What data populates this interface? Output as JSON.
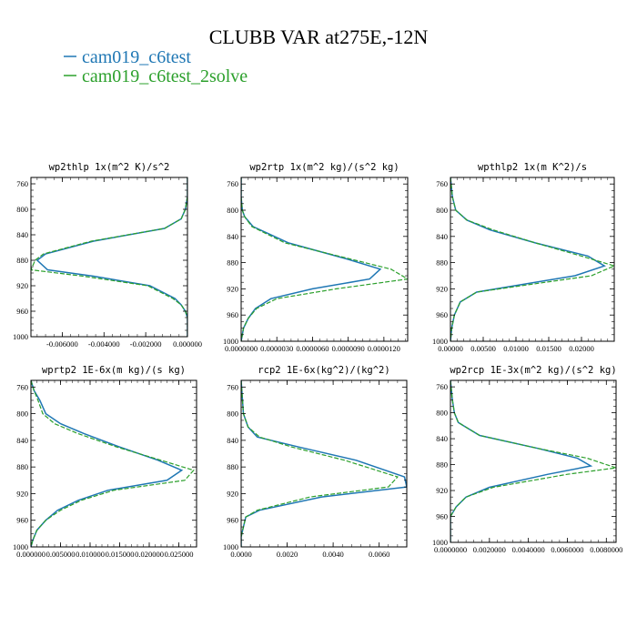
{
  "title": "CLUBB VAR at275E,-12N",
  "legend": [
    {
      "label": "cam019_c6test",
      "color": "#1f77b4"
    },
    {
      "label": "cam019_c6test_2solve",
      "color": "#2ca02c"
    }
  ],
  "chart_data": [
    {
      "type": "line",
      "title": "wp2thlp  1x(m^2 K)/s^2",
      "xlim": [
        -0.0075,
        0.0
      ],
      "ylim": [
        1000,
        750
      ],
      "x_ticks": [
        -0.006,
        -0.004,
        -0.002,
        0.0
      ],
      "x_tick_labels": [
        "-0.006000",
        "-0.004000",
        "-0.002000",
        "0.000000"
      ],
      "y_ticks": [
        760,
        800,
        840,
        880,
        920,
        960,
        1000
      ],
      "series": [
        {
          "name": "cam019_c6test",
          "y": [
            750,
            760,
            780,
            800,
            815,
            830,
            850,
            870,
            880,
            895,
            905,
            920,
            940,
            950,
            960,
            970,
            980,
            1000
          ],
          "x": [
            0.0,
            0.0,
            0.0,
            -0.0001,
            -0.0003,
            -0.0011,
            -0.0045,
            -0.0068,
            -0.0072,
            -0.0067,
            -0.0045,
            -0.0018,
            -0.0006,
            -0.0003,
            -0.0001,
            0.0,
            0.0,
            0.0
          ]
        },
        {
          "name": "cam019_c6test_2solve",
          "y": [
            750,
            760,
            780,
            800,
            815,
            830,
            850,
            870,
            880,
            895,
            905,
            920,
            940,
            950,
            960,
            970,
            980,
            1000
          ],
          "x": [
            0.0,
            0.0,
            0.0,
            -0.0001,
            -0.0003,
            -0.0011,
            -0.0046,
            -0.0069,
            -0.0073,
            -0.0075,
            -0.005,
            -0.0019,
            -0.0007,
            -0.0003,
            -0.0001,
            0.0,
            0.0,
            0.0
          ]
        }
      ]
    },
    {
      "type": "line",
      "title": "wp2rtp  1x(m^2 kg)/(s^2 kg)",
      "xlim": [
        0.0,
        1.4e-05
      ],
      "ylim": [
        1000,
        750
      ],
      "x_ticks": [
        0.0,
        3e-06,
        6e-06,
        9e-06,
        1.2e-05
      ],
      "x_tick_labels": [
        "0.0000000",
        "0.0000030",
        "0.0000060",
        "0.0000090",
        "0.0000120"
      ],
      "y_ticks": [
        760,
        800,
        840,
        880,
        920,
        960,
        1000
      ],
      "series": [
        {
          "name": "cam019_c6test",
          "y": [
            750,
            780,
            800,
            810,
            825,
            850,
            875,
            890,
            905,
            920,
            935,
            950,
            965,
            980,
            1000
          ],
          "x": [
            0.0,
            0.0,
            1e-07,
            3e-07,
            1e-06,
            4e-06,
            9e-06,
            1.17e-05,
            1.08e-05,
            6e-06,
            2.5e-06,
            1.2e-06,
            6e-07,
            2e-07,
            0.0
          ]
        },
        {
          "name": "cam019_c6test_2solve",
          "y": [
            750,
            780,
            800,
            810,
            825,
            850,
            875,
            890,
            905,
            920,
            935,
            950,
            965,
            980,
            1000
          ],
          "x": [
            0.0,
            0.0,
            1e-07,
            3e-07,
            9e-07,
            3.7e-06,
            9.3e-06,
            1.26e-05,
            1.4e-05,
            8e-06,
            3e-06,
            1.3e-06,
            6e-07,
            2e-07,
            0.0
          ]
        }
      ]
    },
    {
      "type": "line",
      "title": "wpthlp2  1x(m K^2)/s",
      "xlim": [
        0.0,
        0.025
      ],
      "ylim": [
        1000,
        750
      ],
      "x_ticks": [
        0.0,
        0.005,
        0.01,
        0.015,
        0.02
      ],
      "x_tick_labels": [
        "0.00000",
        "0.00500",
        "0.01000",
        "0.01500",
        "0.02000"
      ],
      "y_ticks": [
        760,
        800,
        840,
        880,
        920,
        960,
        1000
      ],
      "series": [
        {
          "name": "cam019_c6test",
          "y": [
            750,
            780,
            800,
            815,
            830,
            850,
            870,
            885,
            900,
            915,
            925,
            940,
            960,
            980,
            1000
          ],
          "x": [
            0.0,
            0.0003,
            0.0008,
            0.0025,
            0.006,
            0.013,
            0.021,
            0.0235,
            0.019,
            0.01,
            0.004,
            0.0015,
            0.0006,
            0.0002,
            0.0
          ]
        },
        {
          "name": "cam019_c6test_2solve",
          "y": [
            750,
            780,
            800,
            815,
            830,
            850,
            870,
            885,
            900,
            915,
            925,
            940,
            960,
            980,
            1000
          ],
          "x": [
            0.0,
            0.0003,
            0.0008,
            0.0025,
            0.0065,
            0.013,
            0.02,
            0.025,
            0.0215,
            0.011,
            0.004,
            0.0015,
            0.0006,
            0.0002,
            0.0
          ]
        }
      ]
    },
    {
      "type": "line",
      "title": "wprtp2  1E-6x(m kg)/(s kg)",
      "xlim": [
        0.0,
        0.028
      ],
      "ylim": [
        1000,
        750
      ],
      "x_ticks": [
        0.0,
        0.005,
        0.01,
        0.015,
        0.02,
        0.025
      ],
      "x_tick_labels": [
        "0.000000",
        "0.005000",
        "0.010000",
        "0.015000",
        "0.020000",
        "0.025000"
      ],
      "y_ticks": [
        760,
        800,
        840,
        880,
        920,
        960,
        1000
      ],
      "series": [
        {
          "name": "cam019_c6test",
          "y": [
            750,
            765,
            780,
            800,
            815,
            830,
            850,
            870,
            885,
            900,
            915,
            930,
            945,
            960,
            975,
            990,
            1000
          ],
          "x": [
            0.0,
            0.0005,
            0.0015,
            0.0025,
            0.005,
            0.009,
            0.015,
            0.0215,
            0.0255,
            0.023,
            0.013,
            0.008,
            0.0045,
            0.0025,
            0.001,
            0.0003,
            0.0
          ]
        },
        {
          "name": "cam019_c6test_2solve",
          "y": [
            750,
            765,
            780,
            800,
            815,
            830,
            850,
            870,
            885,
            900,
            915,
            930,
            945,
            960,
            975,
            990,
            1000
          ],
          "x": [
            0.0,
            0.0005,
            0.0012,
            0.002,
            0.004,
            0.008,
            0.0145,
            0.022,
            0.0275,
            0.026,
            0.014,
            0.0085,
            0.005,
            0.0025,
            0.001,
            0.0003,
            0.0
          ]
        }
      ]
    },
    {
      "type": "line",
      "title": "rcp2  1E-6x(kg^2)/(kg^2)",
      "xlim": [
        0.0,
        0.0072
      ],
      "ylim": [
        1000,
        750
      ],
      "x_ticks": [
        0.0,
        0.002,
        0.004,
        0.006
      ],
      "x_tick_labels": [
        "0.0000",
        "0.0020",
        "0.0040",
        "0.0060"
      ],
      "y_ticks": [
        760,
        800,
        840,
        880,
        920,
        960,
        1000
      ],
      "series": [
        {
          "name": "cam019_c6test",
          "y": [
            750,
            800,
            820,
            835,
            850,
            870,
            895,
            910,
            925,
            945,
            955,
            970,
            985,
            1000
          ],
          "x": [
            0.0,
            0.0001,
            0.0003,
            0.0007,
            0.0025,
            0.005,
            0.0071,
            0.0072,
            0.0035,
            0.0008,
            0.0002,
            0.0001,
            0.0,
            0.0
          ]
        },
        {
          "name": "cam019_c6test_2solve",
          "y": [
            750,
            800,
            820,
            835,
            850,
            870,
            895,
            910,
            925,
            945,
            955,
            970,
            985,
            1000
          ],
          "x": [
            0.0,
            0.0001,
            0.0003,
            0.0008,
            0.0022,
            0.0045,
            0.0068,
            0.0064,
            0.003,
            0.0007,
            0.0002,
            0.0001,
            0.0,
            0.0
          ]
        }
      ]
    },
    {
      "type": "line",
      "title": "wp2rcp  1E-3x(m^2 kg)/(s^2 kg)",
      "xlim": [
        0.0,
        0.0085
      ],
      "ylim": [
        1000,
        750
      ],
      "x_ticks": [
        0.0,
        0.002,
        0.004,
        0.006,
        0.008
      ],
      "x_tick_labels": [
        "0.0000000",
        "0.0020000",
        "0.0040000",
        "0.0060000",
        "0.0080000"
      ],
      "y_ticks": [
        760,
        800,
        840,
        880,
        920,
        960,
        1000
      ],
      "series": [
        {
          "name": "cam019_c6test",
          "y": [
            750,
            780,
            800,
            815,
            835,
            855,
            870,
            882,
            895,
            915,
            930,
            945,
            960,
            1000
          ],
          "x": [
            0.0,
            0.0001,
            0.0002,
            0.0004,
            0.0015,
            0.0045,
            0.0065,
            0.0072,
            0.005,
            0.002,
            0.0008,
            0.0003,
            0.0,
            0.0
          ]
        },
        {
          "name": "cam019_c6test_2solve",
          "y": [
            750,
            780,
            800,
            815,
            835,
            855,
            870,
            885,
            895,
            915,
            930,
            945,
            960,
            1000
          ],
          "x": [
            0.0,
            0.0001,
            0.0002,
            0.0004,
            0.0015,
            0.0045,
            0.007,
            0.0085,
            0.006,
            0.0022,
            0.0008,
            0.0003,
            0.0,
            0.0
          ]
        }
      ]
    }
  ]
}
